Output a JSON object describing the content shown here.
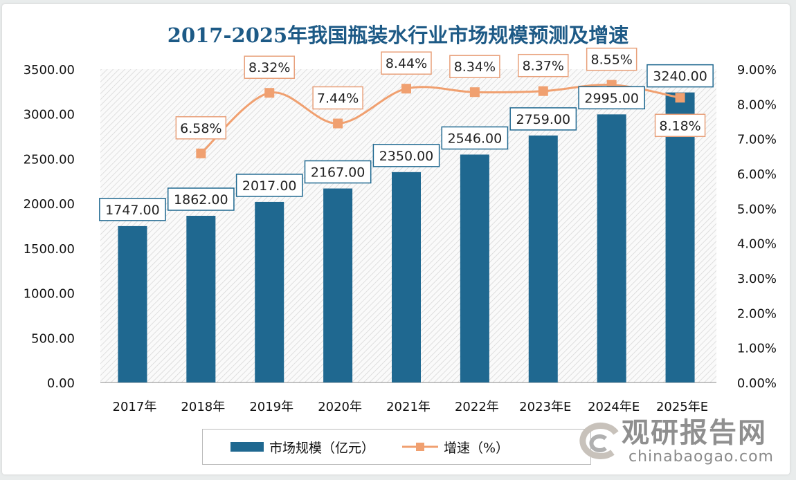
{
  "chart_data": {
    "type": "bar+line",
    "title": "2017-2025年我国瓶装水行业市场规模预测及增速",
    "categories": [
      "2017年",
      "2018年",
      "2019年",
      "2020年",
      "2021年",
      "2022年",
      "2023年E",
      "2024年E",
      "2025年E"
    ],
    "series": [
      {
        "name": "市场规模（亿元）",
        "type": "bar",
        "axis": "left",
        "color": "#1f6890",
        "values": [
          1747,
          1862,
          2017,
          2167,
          2350,
          2546,
          2759,
          2995,
          3240
        ],
        "labels": [
          "1747.00",
          "1862.00",
          "2017.00",
          "2167.00",
          "2350.00",
          "2546.00",
          "2759.00",
          "2995.00",
          "3240.00"
        ]
      },
      {
        "name": "增速（%）",
        "type": "line",
        "axis": "right",
        "color": "#f0a070",
        "values": [
          null,
          6.58,
          8.32,
          7.44,
          8.44,
          8.34,
          8.37,
          8.55,
          8.18
        ],
        "labels": [
          "",
          "6.58%",
          "8.32%",
          "7.44%",
          "8.44%",
          "8.34%",
          "8.37%",
          "8.55%",
          "8.18%"
        ]
      }
    ],
    "y_left": {
      "range": [
        0,
        3500
      ],
      "ticks": [
        "0.00",
        "500.00",
        "1000.00",
        "1500.00",
        "2000.00",
        "2500.00",
        "3000.00",
        "3500.00"
      ]
    },
    "y_right": {
      "range": [
        0,
        9
      ],
      "ticks": [
        "0.00%",
        "1.00%",
        "2.00%",
        "3.00%",
        "4.00%",
        "5.00%",
        "6.00%",
        "7.00%",
        "8.00%",
        "9.00%"
      ]
    },
    "grid": false,
    "legend_position": "bottom"
  },
  "watermark": {
    "cn": "观研报告网",
    "en": "chinabaogao.com"
  }
}
